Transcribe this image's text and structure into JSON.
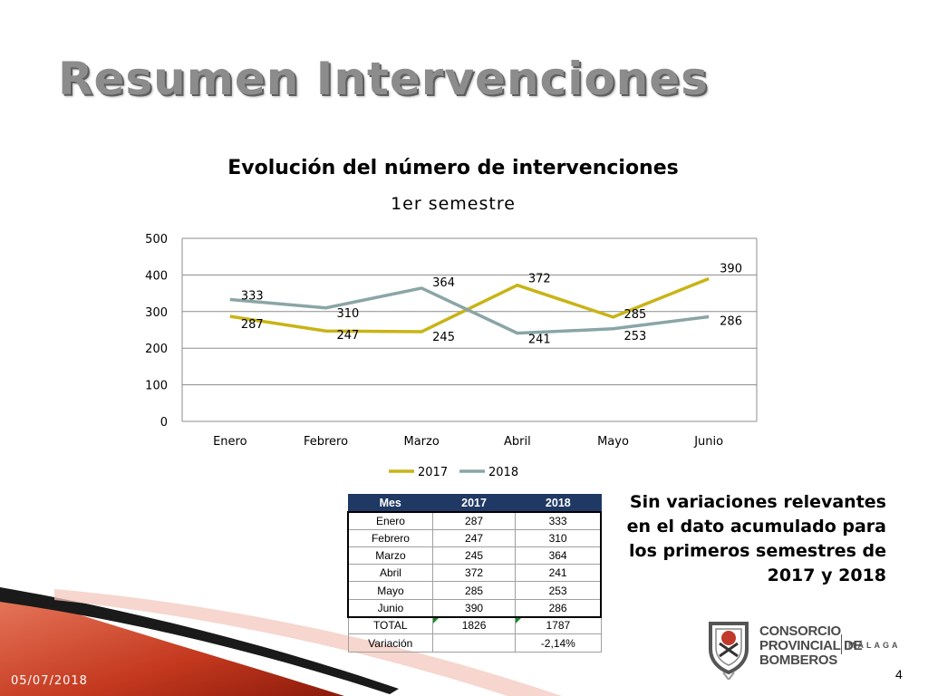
{
  "slide": {
    "title": "Resumen Intervenciones",
    "date": "05/07/2018",
    "page_number": "4"
  },
  "chart_data": {
    "type": "line",
    "title": "Evolución del número de intervenciones",
    "subtitle": "1er semestre",
    "categories": [
      "Enero",
      "Febrero",
      "Marzo",
      "Abril",
      "Mayo",
      "Junio"
    ],
    "series": [
      {
        "name": "2017",
        "values": [
          287,
          247,
          245,
          372,
          285,
          390
        ],
        "color": "#c8b416"
      },
      {
        "name": "2018",
        "values": [
          333,
          310,
          364,
          241,
          253,
          286
        ],
        "color": "#8aa5a6"
      }
    ],
    "ylim": [
      0,
      500
    ],
    "yticks": [
      "0",
      "100",
      "200",
      "300",
      "400",
      "500"
    ],
    "grid": true,
    "legend": "bottom",
    "data_labels": true
  },
  "table": {
    "headers": [
      "Mes",
      "2017",
      "2018"
    ],
    "rows": [
      [
        "Enero",
        "287",
        "333"
      ],
      [
        "Febrero",
        "247",
        "310"
      ],
      [
        "Marzo",
        "245",
        "364"
      ],
      [
        "Abril",
        "372",
        "241"
      ],
      [
        "Mayo",
        "285",
        "253"
      ],
      [
        "Junio",
        "390",
        "286"
      ]
    ],
    "total": [
      "TOTAL",
      "1826",
      "1787"
    ],
    "variation": [
      "Variación",
      "",
      "-2,14%"
    ],
    "header_color": "#1f3864"
  },
  "note": "Sin variaciones relevantes en el dato acumulado para los primeros semestres de 2017 y 2018",
  "logo": {
    "line1": "CONSORCIO",
    "line2": "PROVINCIAL DE",
    "line3": "BOMBEROS",
    "city": "MÁLAGA"
  },
  "colors": {
    "accent_dark": "#8b1a0a",
    "accent_red": "#d9553b",
    "title_gray": "#8c8c8c"
  }
}
